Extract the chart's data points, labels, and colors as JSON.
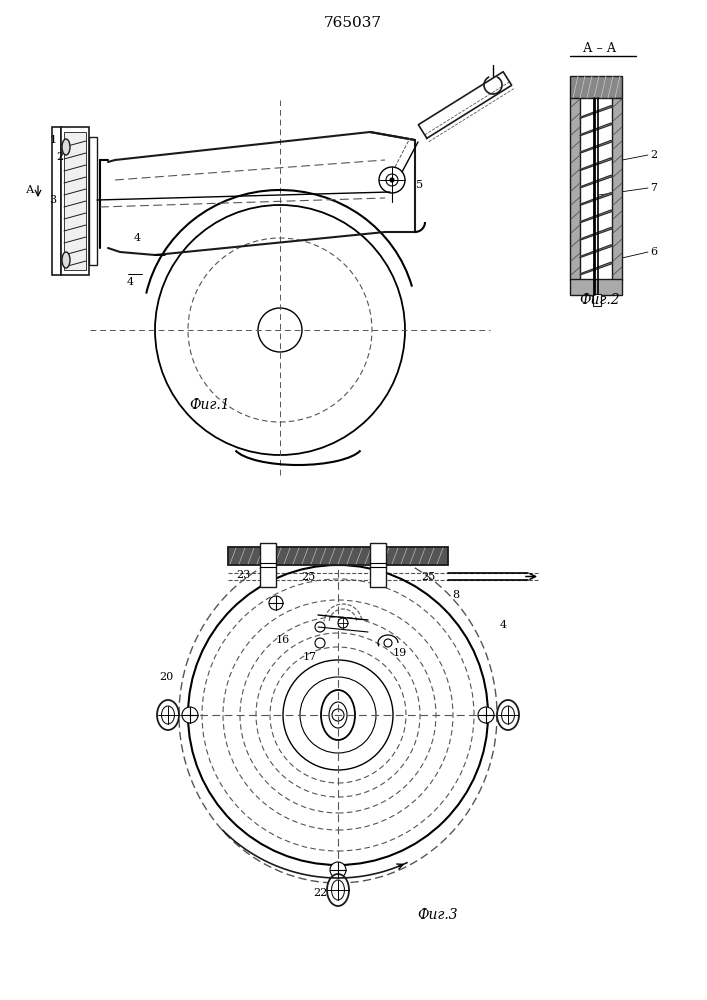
{
  "title": "765037",
  "fig1_label": "Фиг.1",
  "fig2_label": "Фиг.2",
  "fig3_label": "Фиг.3",
  "bg_color": "#ffffff",
  "lc": "#1a1a1a",
  "dc": "#555555"
}
